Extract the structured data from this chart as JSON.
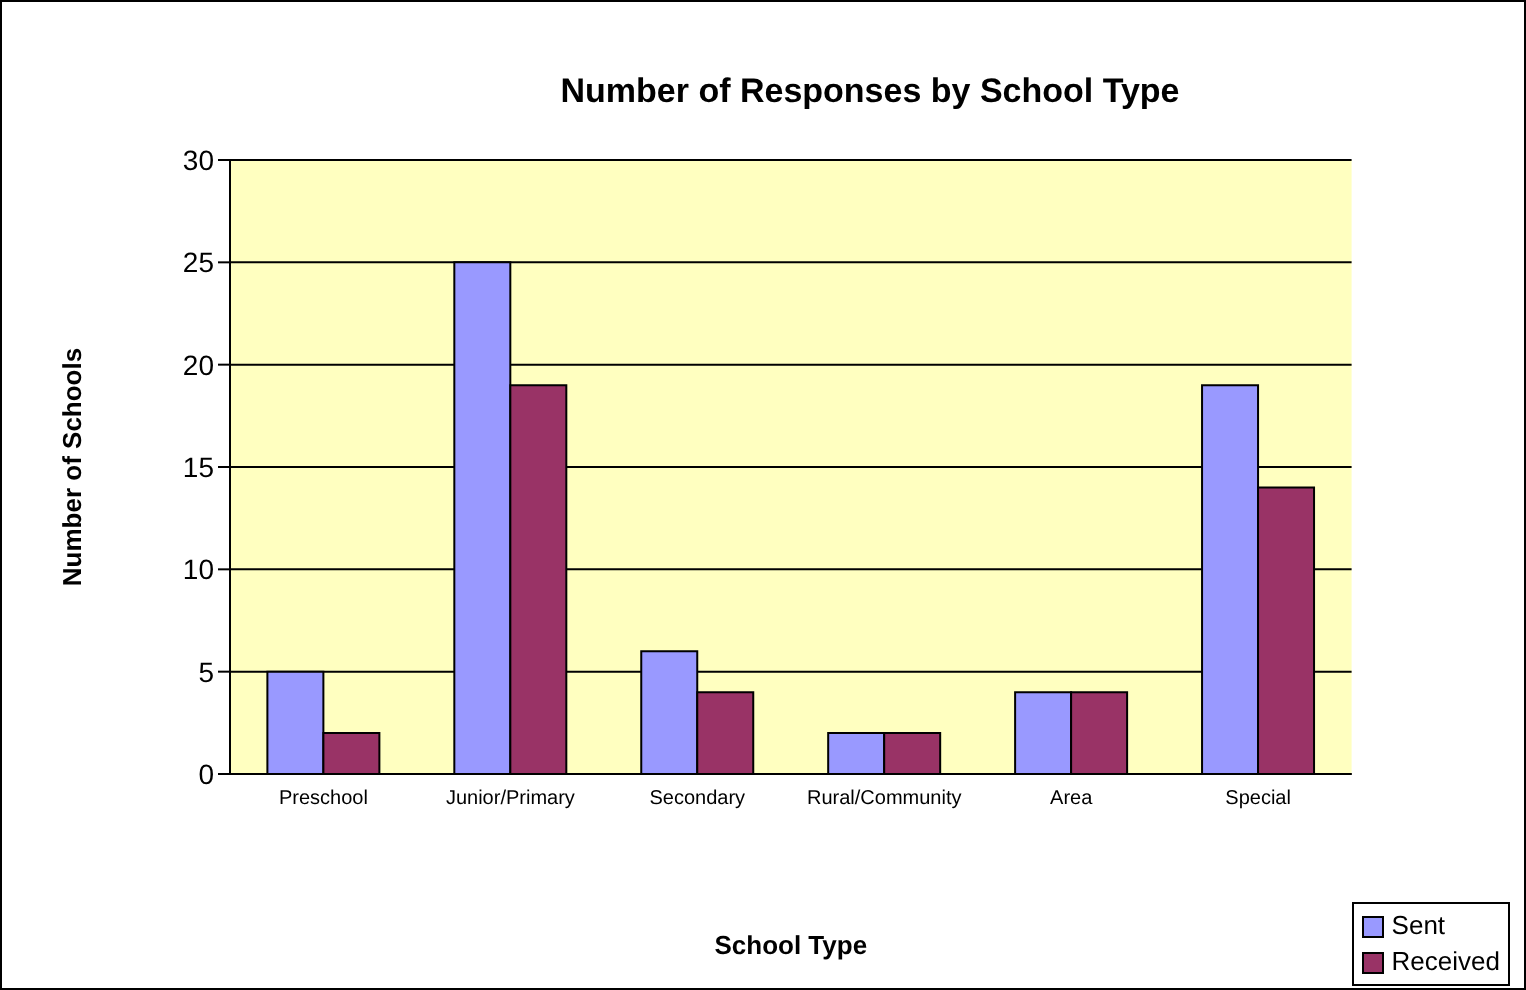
{
  "chart_data": {
    "type": "bar",
    "title": "Number of Responses by School Type",
    "xlabel": "School Type",
    "ylabel": "Number of Schools",
    "categories": [
      "Preschool",
      "Junior/Primary",
      "Secondary",
      "Rural/Community",
      "Area",
      "Special"
    ],
    "series": [
      {
        "name": "Sent",
        "color": "#9999ff",
        "values": [
          5,
          25,
          6,
          2,
          4,
          19
        ]
      },
      {
        "name": "Received",
        "color": "#993366",
        "values": [
          2,
          19,
          4,
          2,
          4,
          14
        ]
      }
    ],
    "ylim": [
      0,
      30
    ],
    "yticks": [
      0,
      5,
      10,
      15,
      20,
      25,
      30
    ],
    "grid": "y",
    "legend": "bottom right"
  }
}
